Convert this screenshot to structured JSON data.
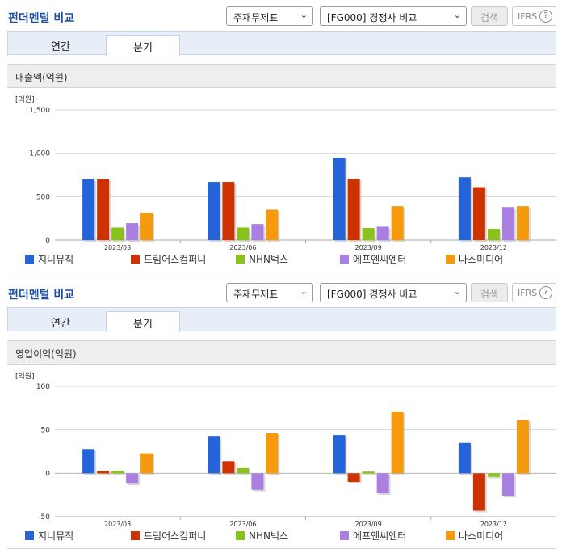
{
  "colors": [
    "#2563d9",
    "#cc3300",
    "#88c21a",
    "#a97fe0",
    "#f59a0c"
  ],
  "panels": [
    {
      "title": "펀더멘털 비교",
      "select_a": "주재무제표",
      "select_b": "[FG000] 경쟁사 비교",
      "search_label": "검색",
      "ifrs_label": "IFRS",
      "help_label": "?",
      "tabs": [
        "연간",
        "분기"
      ],
      "section_title": "매출액(억원)",
      "legend": [
        "지니뮤직",
        "드림어스컴퍼니",
        "NHN벅스",
        "에프엔씨엔터",
        "나스미디어"
      ]
    },
    {
      "title": "펀더멘털 비교",
      "select_a": "주재무제표",
      "select_b": "[FG000] 경쟁사 비교",
      "search_label": "검색",
      "ifrs_label": "IFRS",
      "help_label": "?",
      "tabs": [
        "연간",
        "분기"
      ],
      "section_title": "영업이익(억원)",
      "legend": [
        "지니뮤직",
        "드림어스컴퍼니",
        "NHN벅스",
        "에프엔씨엔터",
        "나스미디어"
      ]
    }
  ],
  "chart_data": [
    {
      "type": "bar",
      "unit_label": "[억원]",
      "categories": [
        "2023/03",
        "2023/06",
        "2023/09",
        "2023/12"
      ],
      "y_ticks": [
        "1,500",
        "1,000",
        "500",
        "0"
      ],
      "ylim": [
        0,
        1500
      ],
      "grid": true,
      "legend_position": "bottom",
      "series": [
        {
          "name": "지니뮤직",
          "values": [
            700,
            670,
            950,
            725
          ]
        },
        {
          "name": "드림어스컴퍼니",
          "values": [
            700,
            670,
            705,
            610
          ]
        },
        {
          "name": "NHN벅스",
          "values": [
            145,
            145,
            140,
            130
          ]
        },
        {
          "name": "에프엔씨엔터",
          "values": [
            195,
            185,
            155,
            380
          ]
        },
        {
          "name": "나스미디어",
          "values": [
            315,
            350,
            390,
            390
          ]
        }
      ]
    },
    {
      "type": "bar",
      "unit_label": "[억원]",
      "categories": [
        "2023/03",
        "2023/06",
        "2023/09",
        "2023/12"
      ],
      "y_ticks": [
        "100",
        "50",
        "0",
        "-50"
      ],
      "ylim": [
        -50,
        100
      ],
      "grid": true,
      "legend_position": "bottom",
      "series": [
        {
          "name": "지니뮤직",
          "values": [
            28,
            43,
            44,
            35
          ]
        },
        {
          "name": "드림어스컴퍼니",
          "values": [
            3,
            14,
            -10,
            -43
          ]
        },
        {
          "name": "NHN벅스",
          "values": [
            3,
            6,
            2,
            -4
          ]
        },
        {
          "name": "에프엔씨엔터",
          "values": [
            -12,
            -19,
            -23,
            -26
          ]
        },
        {
          "name": "나스미디어",
          "values": [
            23,
            46,
            71,
            61
          ]
        }
      ]
    }
  ]
}
